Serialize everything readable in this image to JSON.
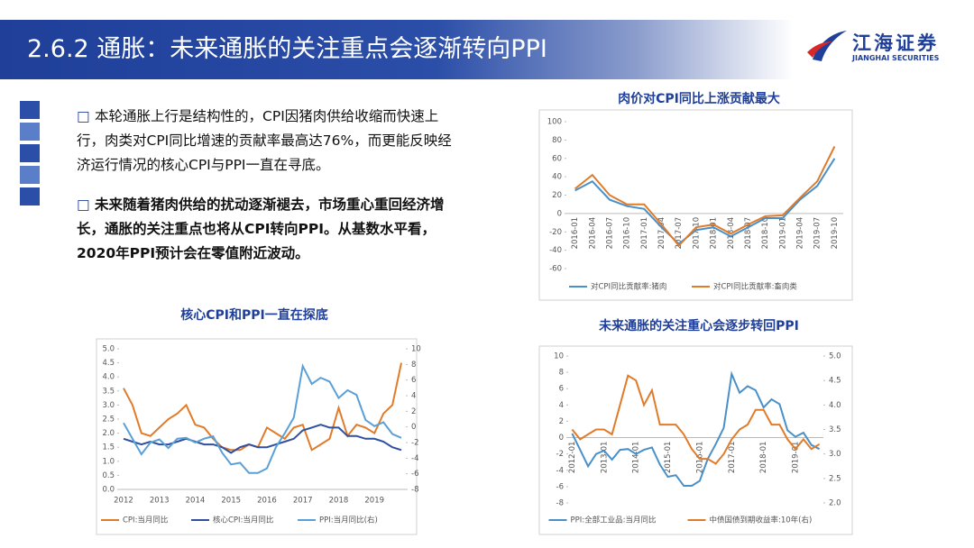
{
  "header": {
    "title": "2.6.2 通胀：未来通胀的关注重点会逐渐转向PPI",
    "logo_cn": "江海证券",
    "logo_en": "JIANGHAI SECURITIES"
  },
  "bullets": [
    "本轮通胀上行是结构性的，CPI因猪肉供给收缩而快速上行，肉类对CPI同比增速的贡献率最高达76%，而更能反映经济运行情况的核心CPI与PPI一直在寻底。",
    "未来随着猪肉供给的扰动逐渐褪去，市场重心重回经济增长，通胀的关注重点也将从CPI转向PPI。从基数水平看，2020年PPI预计会在零值附近波动。"
  ],
  "chart_data": [
    {
      "type": "line",
      "title": "肉价对CPI同比上涨贡献最大",
      "categories": [
        "2016-01",
        "2016-04",
        "2016-07",
        "2016-10",
        "2017-01",
        "2017-04",
        "2017-07",
        "2017-10",
        "2018-01",
        "2018-04",
        "2018-07",
        "2018-10",
        "2019-01",
        "2019-04",
        "2019-07",
        "2019-10"
      ],
      "series": [
        {
          "name": "对CPI同比贡献率:猪肉",
          "color": "#4a90c8",
          "values": [
            25,
            35,
            15,
            8,
            5,
            -15,
            -33,
            -18,
            -15,
            -25,
            -15,
            -5,
            -5,
            15,
            30,
            60
          ]
        },
        {
          "name": "对CPI同比贡献率:畜肉类",
          "color": "#e07b2a",
          "values": [
            27,
            42,
            20,
            10,
            10,
            -12,
            -35,
            -15,
            -12,
            -22,
            -12,
            -3,
            -2,
            17,
            35,
            73
          ]
        }
      ],
      "ylim": [
        -60,
        100
      ],
      "yticks": [
        -60,
        -40,
        -20,
        0,
        20,
        40,
        60,
        80,
        100
      ]
    },
    {
      "type": "line",
      "title": "核心CPI和PPI一直在探底",
      "categories": [
        "2012",
        null,
        null,
        null,
        "2013",
        null,
        null,
        null,
        "2014",
        null,
        null,
        null,
        "2015",
        null,
        null,
        null,
        "2016",
        null,
        null,
        null,
        "2017",
        null,
        null,
        null,
        "2018",
        null,
        null,
        null,
        "2019",
        null,
        null,
        null
      ],
      "series": [
        {
          "name": "CPI:当月同比",
          "color": "#e07b2a",
          "values": [
            3.6,
            3.0,
            2.0,
            1.9,
            2.2,
            2.5,
            2.7,
            3.0,
            2.3,
            2.2,
            1.8,
            1.5,
            1.4,
            1.4,
            1.6,
            1.5,
            2.2,
            2.0,
            1.8,
            2.2,
            2.3,
            1.4,
            1.6,
            1.8,
            2.9,
            1.9,
            2.3,
            2.2,
            2.0,
            2.7,
            3.0,
            4.5
          ]
        },
        {
          "name": "核心CPI:当月同比",
          "color": "#2f4fa0",
          "values": [
            1.8,
            1.7,
            1.6,
            1.7,
            1.6,
            1.6,
            1.7,
            1.8,
            1.7,
            1.6,
            1.6,
            1.5,
            1.3,
            1.5,
            1.6,
            1.5,
            1.5,
            1.6,
            1.7,
            1.8,
            2.1,
            2.2,
            2.3,
            2.2,
            2.2,
            1.9,
            1.9,
            1.8,
            1.8,
            1.7,
            1.5,
            1.4
          ]
        },
        {
          "name": "PPI:当月同比(右)",
          "color": "#5aa0d8",
          "axis": "y2",
          "values": [
            0.5,
            -1.5,
            -3.5,
            -2,
            -1.6,
            -2.7,
            -1.5,
            -1.4,
            -2,
            -1.5,
            -1.2,
            -3.3,
            -4.8,
            -4.6,
            -5.9,
            -5.9,
            -5.3,
            -2.6,
            -0.8,
            1.2,
            7.8,
            5.5,
            6.3,
            5.8,
            3.7,
            4.7,
            4.1,
            0.9,
            0.1,
            0.6,
            -0.9,
            -1.4
          ]
        }
      ],
      "ylim": [
        0,
        5
      ],
      "yticks": [
        {
          "value": 0,
          "label": "0.0"
        },
        0.5,
        {
          "value": 1,
          "label": "1.0"
        },
        1.5,
        {
          "value": 2,
          "label": "2.0"
        },
        2.5,
        {
          "value": 3,
          "label": "3.0"
        },
        3.5,
        {
          "value": 4,
          "label": "4.0"
        },
        4.5,
        {
          "value": 5,
          "label": "5.0"
        }
      ],
      "y2lim": [
        -8,
        10
      ],
      "y2ticks": [
        -8,
        -6,
        -4,
        -2,
        0,
        2,
        4,
        6,
        8,
        10
      ]
    },
    {
      "type": "line",
      "title": "未来通胀的关注重心会逐步转回PPI",
      "categories": [
        "2012-01",
        null,
        null,
        null,
        "2013-01",
        null,
        null,
        null,
        "2014-01",
        null,
        null,
        null,
        "2015-01",
        null,
        null,
        null,
        "2016-01",
        null,
        null,
        null,
        "2017-01",
        null,
        null,
        null,
        "2018-01",
        null,
        null,
        null,
        "2019-01",
        null,
        null,
        null
      ],
      "series": [
        {
          "name": "PPI:全部工业品:当月同比",
          "color": "#4a90c8",
          "values": [
            0.5,
            -1.5,
            -3.5,
            -2,
            -1.6,
            -2.7,
            -1.5,
            -1.4,
            -2,
            -1.5,
            -1.2,
            -3.3,
            -4.8,
            -4.6,
            -5.9,
            -5.9,
            -5.3,
            -2.6,
            -0.8,
            1.2,
            7.8,
            5.5,
            6.3,
            5.8,
            3.7,
            4.7,
            4.1,
            0.9,
            0.1,
            0.6,
            -0.9,
            -1.4
          ]
        },
        {
          "name": "中债国债到期收益率:10年(右)",
          "color": "#e07b2a",
          "axis": "y2",
          "values": [
            3.5,
            3.3,
            3.4,
            3.5,
            3.5,
            3.4,
            4.0,
            4.6,
            4.5,
            4.0,
            4.3,
            3.6,
            3.6,
            3.6,
            3.4,
            3.1,
            2.9,
            2.9,
            2.8,
            3.0,
            3.3,
            3.5,
            3.6,
            3.9,
            3.9,
            3.6,
            3.6,
            3.3,
            3.1,
            3.3,
            3.1,
            3.2
          ]
        }
      ],
      "ylim": [
        -8,
        10
      ],
      "yticks": [
        -8,
        -6,
        -4,
        -2,
        0,
        2,
        4,
        6,
        8,
        10
      ],
      "y2lim": [
        2,
        5
      ],
      "y2ticks": [
        {
          "value": 2,
          "label": "2.0"
        },
        2.5,
        {
          "value": 3,
          "label": "3.0"
        },
        3.5,
        {
          "value": 4,
          "label": "4.0"
        },
        4.5,
        {
          "value": 5,
          "label": "5.0"
        }
      ]
    }
  ]
}
